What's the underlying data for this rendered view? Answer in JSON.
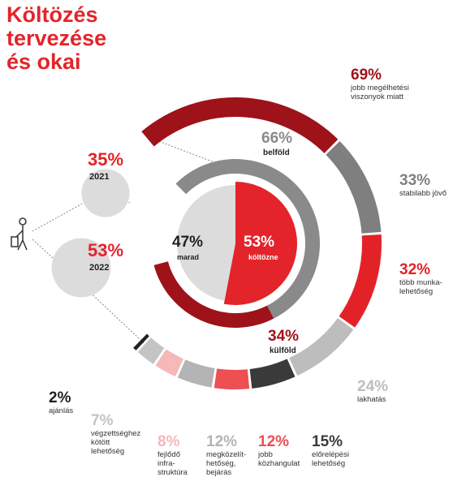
{
  "title": "Költözés\ntervezése\nés okai",
  "chart_data": [
    {
      "type": "pie",
      "categories": [
        "marad",
        "költözne"
      ],
      "values": [
        47,
        53
      ],
      "value_labels": [
        "47%",
        "53%"
      ],
      "colors": [
        "#dcdcdd",
        "#e3242b"
      ]
    },
    {
      "type": "ring",
      "categories": [
        "belföld",
        "külföld"
      ],
      "values": [
        66,
        34
      ],
      "value_labels": [
        "66%",
        "34%"
      ],
      "colors": [
        "#8a8a8b",
        "#9e1219"
      ]
    },
    {
      "type": "outer-ring",
      "categories": [
        "jobb megélhetési\nviszonyok miatt",
        "stabilabb jövő",
        "több munka-\nlehetőség",
        "lakhatás",
        "előrelépési\nlehetőség",
        "jobb\nközhangulat",
        "megközelít-\nhetőség,\nbejárás",
        "fejlődő\ninfra-\nstruktúra",
        "végzettséghez\nkötött\nlehetőség",
        "ajánlás"
      ],
      "values": [
        69,
        33,
        32,
        24,
        15,
        12,
        12,
        8,
        7,
        2
      ],
      "value_labels": [
        "69%",
        "33%",
        "32%",
        "24%",
        "15%",
        "12%",
        "12%",
        "8%",
        "7%",
        "2%"
      ],
      "colors": [
        "#9e1219",
        "#7f7f80",
        "#e32228",
        "#bdbdbe",
        "#3a3a3a",
        "#ee4f52",
        "#b4b4b5",
        "#f6b8b8",
        "#c4c4c5",
        "#222222"
      ]
    },
    {
      "type": "bubble",
      "categories": [
        "2021",
        "2022"
      ],
      "values": [
        35,
        53
      ],
      "value_labels": [
        "35%",
        "53%"
      ],
      "color": "#dcdcdd"
    }
  ]
}
